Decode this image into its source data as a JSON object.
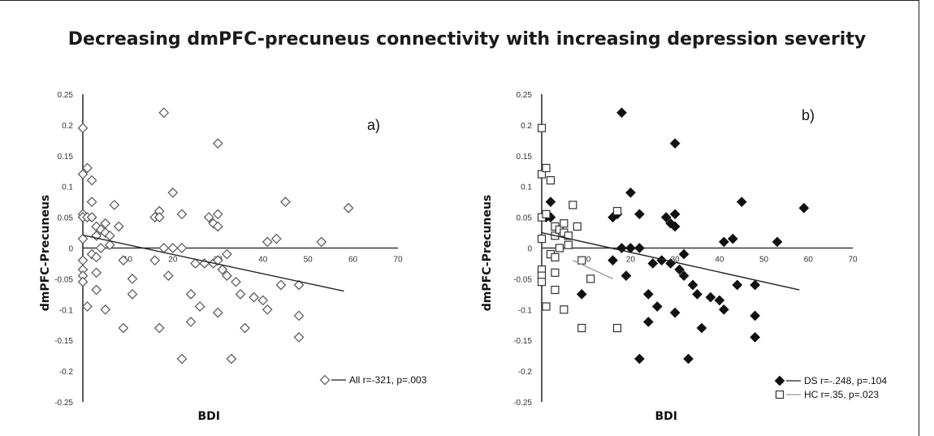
{
  "title": "Decreasing dmPFC-precuneus connectivity with increasing depression severity",
  "chart_data": [
    {
      "type": "scatter",
      "panel_label": "a)",
      "xlabel": "BDI",
      "ylabel": "dmPFC-Precuneus",
      "xlim": [
        0,
        70
      ],
      "ylim": [
        -0.25,
        0.25
      ],
      "xticks": [
        "10",
        "20",
        "30",
        "40",
        "50",
        "60",
        "70"
      ],
      "yticks": [
        "0.25",
        "0.2",
        "0.15",
        "0.1",
        "0.05",
        "0",
        "-0.05",
        "-0.1",
        "-0.15",
        "-0.2",
        "-0.25"
      ],
      "trendline": {
        "x": [
          0,
          58
        ],
        "y": [
          0.021,
          -0.07
        ]
      },
      "series": [
        {
          "name": "All",
          "legend": "All r=-321, p=.003",
          "marker": "diamond-open",
          "color": "#555555",
          "points": [
            [
              0,
              0.195
            ],
            [
              0,
              0.12
            ],
            [
              0,
              0.055
            ],
            [
              0,
              0.05
            ],
            [
              0,
              0.015
            ],
            [
              0,
              -0.02
            ],
            [
              0,
              -0.035
            ],
            [
              0,
              -0.045
            ],
            [
              0,
              -0.055
            ],
            [
              1,
              0.13
            ],
            [
              1,
              0.05
            ],
            [
              1,
              -0.095
            ],
            [
              2,
              0.11
            ],
            [
              2,
              0.075
            ],
            [
              2,
              0.05
            ],
            [
              2,
              -0.01
            ],
            [
              3,
              0.035
            ],
            [
              3,
              0.02
            ],
            [
              3,
              -0.015
            ],
            [
              3,
              -0.04
            ],
            [
              3,
              -0.068
            ],
            [
              4,
              0.03
            ],
            [
              4,
              0.0
            ],
            [
              5,
              0.04
            ],
            [
              5,
              0.025
            ],
            [
              5,
              -0.1
            ],
            [
              6,
              0.02
            ],
            [
              6,
              0.005
            ],
            [
              7,
              0.07
            ],
            [
              8,
              0.035
            ],
            [
              9,
              -0.02
            ],
            [
              9,
              -0.13
            ],
            [
              11,
              -0.05
            ],
            [
              11,
              -0.075
            ],
            [
              16,
              0.05
            ],
            [
              16,
              -0.02
            ],
            [
              17,
              0.06
            ],
            [
              17,
              0.05
            ],
            [
              17,
              -0.13
            ],
            [
              18,
              0.22
            ],
            [
              18,
              0.0
            ],
            [
              19,
              -0.045
            ],
            [
              20,
              0.09
            ],
            [
              20,
              0.0
            ],
            [
              22,
              0.055
            ],
            [
              22,
              0.0
            ],
            [
              22,
              -0.18
            ],
            [
              24,
              -0.075
            ],
            [
              24,
              -0.12
            ],
            [
              25,
              -0.025
            ],
            [
              26,
              -0.095
            ],
            [
              27,
              -0.025
            ],
            [
              28,
              0.05
            ],
            [
              29,
              0.04
            ],
            [
              29,
              -0.025
            ],
            [
              30,
              0.17
            ],
            [
              30,
              0.055
            ],
            [
              30,
              0.035
            ],
            [
              30,
              -0.02
            ],
            [
              30,
              -0.105
            ],
            [
              31,
              -0.035
            ],
            [
              32,
              -0.01
            ],
            [
              32,
              -0.045
            ],
            [
              33,
              -0.18
            ],
            [
              34,
              -0.055
            ],
            [
              35,
              -0.075
            ],
            [
              36,
              -0.13
            ],
            [
              38,
              -0.08
            ],
            [
              40,
              -0.085
            ],
            [
              41,
              0.01
            ],
            [
              41,
              -0.1
            ],
            [
              43,
              0.015
            ],
            [
              44,
              -0.06
            ],
            [
              45,
              0.075
            ],
            [
              48,
              -0.06
            ],
            [
              48,
              -0.11
            ],
            [
              48,
              -0.145
            ],
            [
              53,
              0.01
            ],
            [
              59,
              0.065
            ]
          ]
        }
      ]
    },
    {
      "type": "scatter",
      "panel_label": "b)",
      "xlabel": "BDI",
      "ylabel": "dmPFC-Precuneus",
      "xlim": [
        0,
        70
      ],
      "ylim": [
        -0.25,
        0.25
      ],
      "xticks": [
        "10",
        "20",
        "30",
        "40",
        "50",
        "60",
        "70"
      ],
      "yticks": [
        "0.25",
        "0.2",
        "0.15",
        "0.1",
        "0.05",
        "0",
        "-0.05",
        "-0.1",
        "-0.15",
        "-0.2",
        "-0.25"
      ],
      "trendlines": [
        {
          "series": "DS",
          "x": [
            0,
            58
          ],
          "y": [
            0.025,
            -0.068
          ],
          "color": "#222222"
        },
        {
          "series": "HC",
          "x": [
            7,
            16
          ],
          "y": [
            -0.02,
            -0.05
          ],
          "color": "#9a9a9a"
        }
      ],
      "series": [
        {
          "name": "DS",
          "legend": "DS r=-.248, p=.104",
          "marker": "diamond-filled",
          "color": "#111111",
          "points": [
            [
              1,
              0.05
            ],
            [
              2,
              0.075
            ],
            [
              2,
              0.05
            ],
            [
              9,
              -0.075
            ],
            [
              16,
              0.05
            ],
            [
              16,
              -0.02
            ],
            [
              17,
              0.055
            ],
            [
              18,
              0.22
            ],
            [
              18,
              0.0
            ],
            [
              19,
              -0.045
            ],
            [
              20,
              0.09
            ],
            [
              20,
              0.0
            ],
            [
              22,
              0.055
            ],
            [
              22,
              0.0
            ],
            [
              22,
              -0.18
            ],
            [
              24,
              -0.075
            ],
            [
              24,
              -0.12
            ],
            [
              25,
              -0.025
            ],
            [
              26,
              -0.095
            ],
            [
              27,
              -0.02
            ],
            [
              28,
              0.05
            ],
            [
              29,
              0.04
            ],
            [
              29,
              -0.025
            ],
            [
              30,
              0.17
            ],
            [
              30,
              0.055
            ],
            [
              30,
              0.035
            ],
            [
              30,
              -0.105
            ],
            [
              31,
              -0.035
            ],
            [
              32,
              -0.01
            ],
            [
              32,
              -0.045
            ],
            [
              33,
              -0.18
            ],
            [
              34,
              -0.06
            ],
            [
              35,
              -0.075
            ],
            [
              36,
              -0.13
            ],
            [
              38,
              -0.08
            ],
            [
              40,
              -0.085
            ],
            [
              41,
              0.01
            ],
            [
              41,
              -0.1
            ],
            [
              43,
              0.015
            ],
            [
              44,
              -0.06
            ],
            [
              45,
              0.075
            ],
            [
              48,
              -0.06
            ],
            [
              48,
              -0.11
            ],
            [
              48,
              -0.145
            ],
            [
              53,
              0.01
            ],
            [
              59,
              0.065
            ]
          ]
        },
        {
          "name": "HC",
          "legend": "HC r=.35, p=.023",
          "marker": "square-open",
          "color": "#333333",
          "points": [
            [
              0,
              0.195
            ],
            [
              0,
              0.12
            ],
            [
              0,
              0.05
            ],
            [
              0,
              0.015
            ],
            [
              0,
              -0.035
            ],
            [
              0,
              -0.045
            ],
            [
              0,
              -0.055
            ],
            [
              1,
              0.13
            ],
            [
              1,
              0.055
            ],
            [
              1,
              -0.095
            ],
            [
              2,
              0.11
            ],
            [
              2,
              -0.01
            ],
            [
              3,
              0.035
            ],
            [
              3,
              0.02
            ],
            [
              3,
              -0.015
            ],
            [
              3,
              -0.04
            ],
            [
              3,
              -0.068
            ],
            [
              4,
              0.03
            ],
            [
              4,
              0.0
            ],
            [
              5,
              0.04
            ],
            [
              5,
              0.025
            ],
            [
              5,
              -0.1
            ],
            [
              6,
              0.02
            ],
            [
              6,
              0.005
            ],
            [
              7,
              0.07
            ],
            [
              8,
              0.035
            ],
            [
              9,
              -0.02
            ],
            [
              9,
              -0.13
            ],
            [
              11,
              -0.05
            ],
            [
              17,
              0.06
            ],
            [
              17,
              -0.13
            ]
          ]
        }
      ]
    }
  ]
}
